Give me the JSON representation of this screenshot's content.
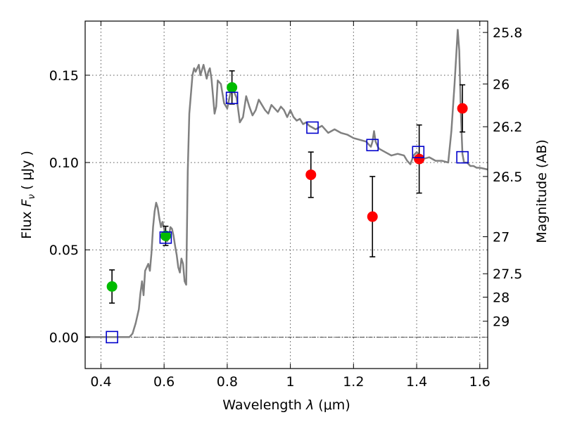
{
  "chart_data": {
    "type": "scatter",
    "xlabel": {
      "prefix": "Wavelength  ",
      "symbol": "λ",
      "unit": " (μm)"
    },
    "ylabel": {
      "prefix": "Flux  ",
      "symbol": "F",
      "subscript": "ν",
      "unit": "  ( μJy )"
    },
    "y2label": "Magnitude (AB)",
    "xlim": [
      0.35,
      1.625
    ],
    "ylim": [
      -0.018,
      0.181
    ],
    "grid": true,
    "x_ticks": [
      {
        "value": 0.4,
        "label": "0.4"
      },
      {
        "value": 0.6,
        "label": "0.6"
      },
      {
        "value": 0.8,
        "label": "0.8"
      },
      {
        "value": 1.0,
        "label": "1"
      },
      {
        "value": 1.2,
        "label": "1.2"
      },
      {
        "value": 1.4,
        "label": "1.4"
      },
      {
        "value": 1.6,
        "label": "1.6"
      }
    ],
    "y_ticks": [
      {
        "value": 0.0,
        "label": "0.00"
      },
      {
        "value": 0.05,
        "label": "0.05"
      },
      {
        "value": 0.1,
        "label": "0.10"
      },
      {
        "value": 0.15,
        "label": "0.15"
      }
    ],
    "y2_ticks": [
      {
        "flux": 0.1745,
        "label": "25.8"
      },
      {
        "flux": 0.145,
        "label": "26"
      },
      {
        "flux": 0.1205,
        "label": "26.2"
      },
      {
        "flux": 0.092,
        "label": "26.5"
      },
      {
        "flux": 0.0575,
        "label": "27"
      },
      {
        "flux": 0.0363,
        "label": "27.5"
      },
      {
        "flux": 0.0229,
        "label": "28"
      },
      {
        "flux": 0.0091,
        "label": "29"
      }
    ],
    "zero_line": 0.0,
    "series": [
      {
        "kind": "line",
        "color": "#808080",
        "x": [
          0.35,
          0.49,
          0.5,
          0.51,
          0.52,
          0.525,
          0.53,
          0.535,
          0.54,
          0.545,
          0.55,
          0.555,
          0.56,
          0.565,
          0.57,
          0.575,
          0.58,
          0.585,
          0.59,
          0.595,
          0.6,
          0.605,
          0.61,
          0.615,
          0.62,
          0.625,
          0.63,
          0.635,
          0.64,
          0.645,
          0.65,
          0.655,
          0.66,
          0.665,
          0.67,
          0.675,
          0.68,
          0.69,
          0.695,
          0.7,
          0.705,
          0.71,
          0.715,
          0.72,
          0.725,
          0.73,
          0.735,
          0.74,
          0.745,
          0.75,
          0.755,
          0.76,
          0.765,
          0.77,
          0.78,
          0.79,
          0.8,
          0.81,
          0.82,
          0.83,
          0.84,
          0.85,
          0.86,
          0.87,
          0.88,
          0.89,
          0.9,
          0.91,
          0.92,
          0.93,
          0.94,
          0.95,
          0.96,
          0.97,
          0.98,
          0.99,
          1.0,
          1.01,
          1.02,
          1.03,
          1.04,
          1.05,
          1.06,
          1.07,
          1.08,
          1.09,
          1.1,
          1.12,
          1.14,
          1.16,
          1.18,
          1.2,
          1.22,
          1.24,
          1.25,
          1.255,
          1.26,
          1.265,
          1.27,
          1.28,
          1.3,
          1.32,
          1.34,
          1.36,
          1.37,
          1.38,
          1.39,
          1.4,
          1.42,
          1.44,
          1.46,
          1.48,
          1.5,
          1.51,
          1.52,
          1.525,
          1.53,
          1.535,
          1.54,
          1.545,
          1.55,
          1.56,
          1.57,
          1.58,
          1.59,
          1.6,
          1.625
        ],
        "y": [
          0.0,
          0.0,
          0.002,
          0.008,
          0.016,
          0.025,
          0.032,
          0.024,
          0.038,
          0.04,
          0.042,
          0.038,
          0.048,
          0.063,
          0.072,
          0.077,
          0.074,
          0.068,
          0.063,
          0.066,
          0.062,
          0.058,
          0.055,
          0.057,
          0.063,
          0.062,
          0.058,
          0.052,
          0.047,
          0.04,
          0.037,
          0.045,
          0.042,
          0.032,
          0.03,
          0.095,
          0.128,
          0.15,
          0.154,
          0.152,
          0.154,
          0.156,
          0.15,
          0.153,
          0.156,
          0.152,
          0.148,
          0.152,
          0.154,
          0.148,
          0.138,
          0.128,
          0.132,
          0.147,
          0.145,
          0.134,
          0.131,
          0.14,
          0.141,
          0.137,
          0.123,
          0.126,
          0.138,
          0.132,
          0.127,
          0.13,
          0.136,
          0.133,
          0.13,
          0.128,
          0.133,
          0.131,
          0.129,
          0.132,
          0.13,
          0.126,
          0.13,
          0.126,
          0.124,
          0.125,
          0.122,
          0.123,
          0.121,
          0.12,
          0.119,
          0.12,
          0.121,
          0.117,
          0.119,
          0.117,
          0.116,
          0.114,
          0.113,
          0.112,
          0.11,
          0.109,
          0.112,
          0.118,
          0.112,
          0.108,
          0.106,
          0.104,
          0.105,
          0.104,
          0.101,
          0.099,
          0.104,
          0.106,
          0.102,
          0.103,
          0.101,
          0.101,
          0.1,
          0.118,
          0.145,
          0.16,
          0.176,
          0.164,
          0.128,
          0.105,
          0.1,
          0.1,
          0.098,
          0.098,
          0.097,
          0.097,
          0.096
        ]
      },
      {
        "kind": "points",
        "marker": "circle",
        "color": "#00bb00",
        "x": [
          0.435,
          0.605,
          0.815
        ],
        "y": [
          0.029,
          0.058,
          0.143
        ],
        "err": [
          0.0095,
          0.0055,
          0.0095
        ]
      },
      {
        "kind": "points",
        "marker": "circle",
        "color": "#ff0000",
        "x": [
          1.065,
          1.26,
          1.408,
          1.545
        ],
        "y": [
          0.093,
          0.069,
          0.102,
          0.131
        ],
        "err": [
          0.013,
          0.023,
          0.0195,
          0.0135
        ]
      },
      {
        "kind": "points",
        "marker": "square",
        "color": "#0000cc",
        "x": [
          0.435,
          0.605,
          0.815,
          1.07,
          1.26,
          1.405,
          1.545
        ],
        "y": [
          0.0,
          0.057,
          0.137,
          0.12,
          0.11,
          0.106,
          0.103
        ]
      }
    ]
  }
}
